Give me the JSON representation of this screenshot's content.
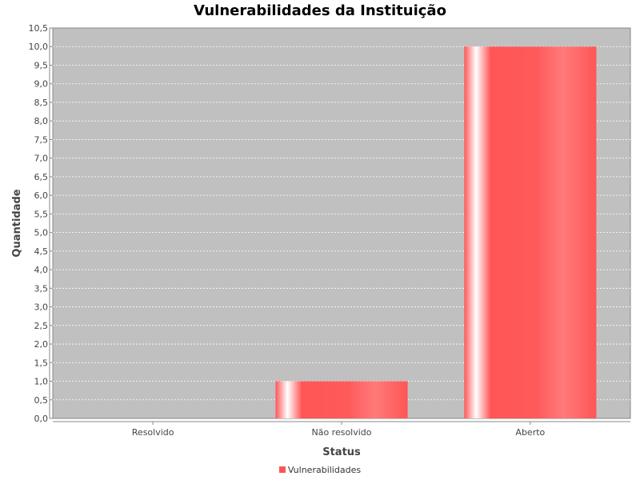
{
  "chart_data": {
    "type": "bar",
    "title": "Vulnerabilidades da Instituição",
    "xlabel": "Status",
    "ylabel": "Quantidade",
    "categories": [
      "Resolvido",
      "Não resolvido",
      "Aberto"
    ],
    "series": [
      {
        "name": "Vulnerabilidades",
        "values": [
          0,
          1,
          10
        ],
        "color": "#ff5555"
      }
    ],
    "ylim": [
      0,
      10.5
    ],
    "ytick_step": 0.5,
    "ytick_labels": [
      "0,0",
      "0,5",
      "1,0",
      "1,5",
      "2,0",
      "2,5",
      "3,0",
      "3,5",
      "4,0",
      "4,5",
      "5,0",
      "5,5",
      "6,0",
      "6,5",
      "7,0",
      "7,5",
      "8,0",
      "8,5",
      "9,0",
      "9,5",
      "10,0",
      "10,5"
    ],
    "grid": true,
    "legend_position": "bottom",
    "plot_background": "#c0c0c0"
  }
}
